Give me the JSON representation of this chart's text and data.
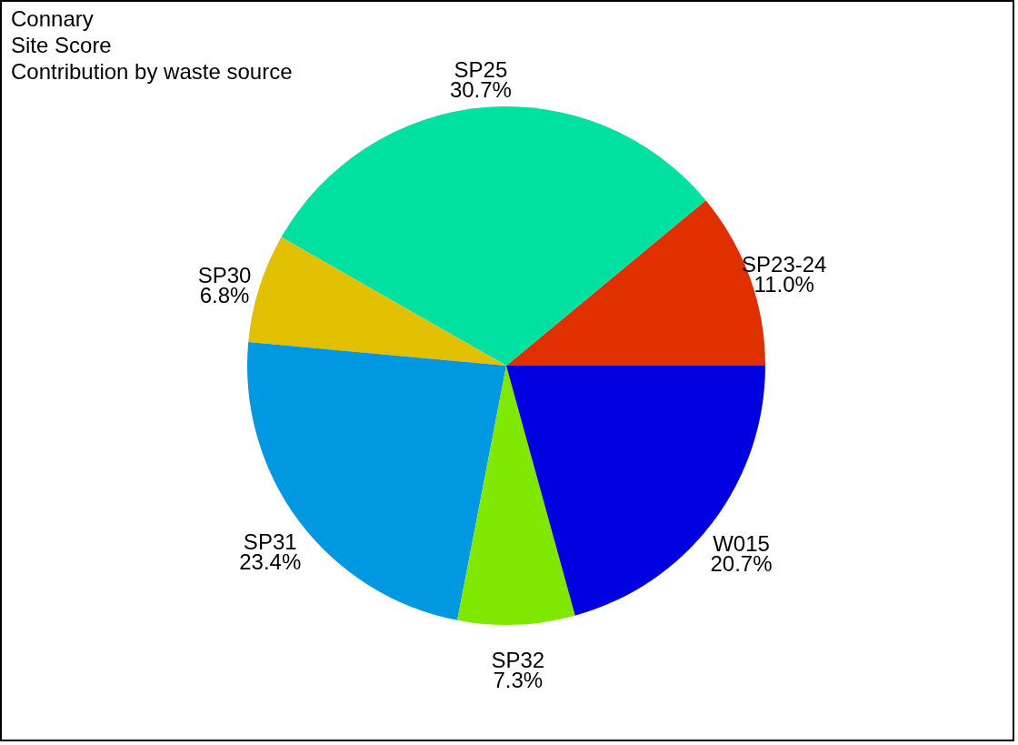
{
  "chart_data": {
    "type": "pie",
    "title": "Connary",
    "subtitle": "Site Score",
    "annotations": [
      "Contribution by waste source"
    ],
    "categories": [
      "SP23-24",
      "SP25",
      "SP30",
      "SP31",
      "SP32",
      "W015"
    ],
    "values": [
      11.0,
      30.7,
      6.8,
      23.4,
      7.3,
      20.7
    ],
    "value_labels": [
      "11.0%",
      "30.7%",
      "6.8%",
      "23.4%",
      "7.3%",
      "20.7%"
    ],
    "colors": [
      "#e03000",
      "#00e0a0",
      "#e0c000",
      "#0098e0",
      "#80e800",
      "#0000e0"
    ],
    "legend": false
  }
}
